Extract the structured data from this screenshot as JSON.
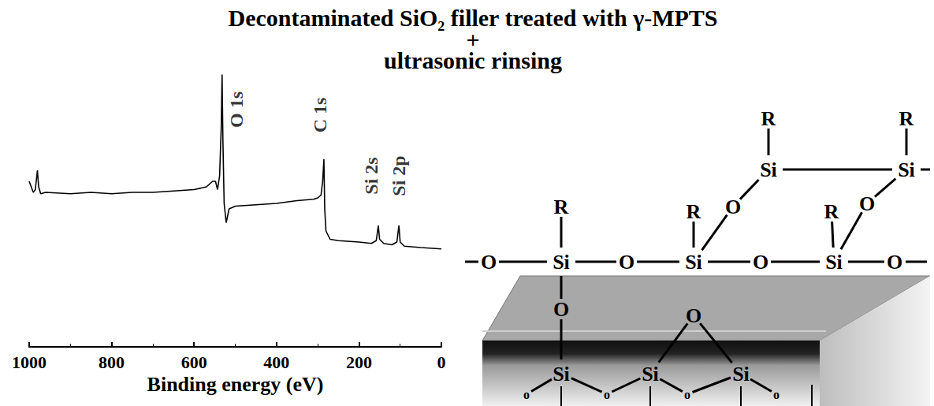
{
  "header": [
    "Decontaminated SiO₂ filler treated with γ-MPTS",
    "+",
    "ultrasonic rinsing"
  ],
  "chart_data": {
    "type": "line",
    "xlabel": "Binding energy (eV)",
    "xlim": [
      1000,
      0
    ],
    "xticks": [
      1000,
      800,
      600,
      400,
      200,
      0
    ],
    "ylim": [
      0,
      100
    ],
    "tick_labels": "x",
    "grid": false,
    "color": "#000000",
    "x": [
      1000,
      995,
      990,
      985,
      980,
      977,
      972,
      960,
      900,
      850,
      800,
      750,
      700,
      650,
      600,
      570,
      555,
      548,
      543,
      538,
      534,
      532,
      530,
      527,
      522,
      515,
      500,
      450,
      400,
      350,
      310,
      300,
      292,
      288,
      285,
      283,
      280,
      270,
      250,
      200,
      170,
      158,
      153,
      150,
      140,
      120,
      108,
      103,
      100,
      90,
      50,
      0
    ],
    "values": [
      60,
      58,
      56,
      57,
      64,
      58,
      55.5,
      56,
      55.5,
      56,
      55.5,
      56,
      56,
      56.5,
      57,
      58,
      60,
      60,
      57,
      62,
      80,
      98.7,
      75,
      52,
      45,
      50,
      51,
      51.5,
      52,
      53,
      53.5,
      54,
      55,
      60,
      68,
      50,
      42,
      39,
      38.5,
      38,
      37.5,
      38.5,
      44,
      39,
      37.5,
      37,
      38,
      44,
      38,
      36.5,
      36,
      35.5
    ],
    "annotations": [
      {
        "text": "O 1s",
        "x": 497,
        "y": 86
      },
      {
        "text": "C 1s",
        "x": 295,
        "y": 84
      },
      {
        "text": "Si 2s",
        "x": 170,
        "y": 62
      },
      {
        "text": "Si 2p",
        "x": 103,
        "y": 62
      }
    ]
  },
  "diagram": {
    "atoms": [
      "O",
      "Si",
      "O",
      "Si",
      "O",
      "Si",
      "O",
      "R",
      "R",
      "Si",
      "R",
      "O",
      "R",
      "Si",
      "R",
      "O",
      "O",
      "Si",
      "O",
      "Si",
      "Si",
      "o",
      "o",
      "o",
      "o"
    ]
  }
}
